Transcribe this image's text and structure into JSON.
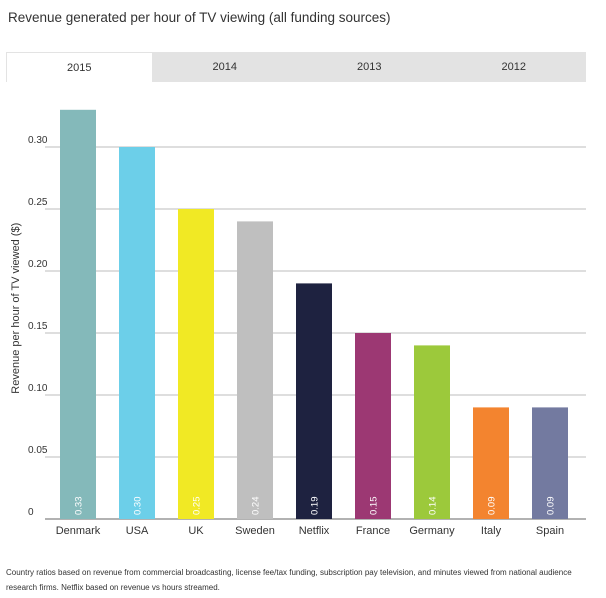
{
  "title": "Revenue generated per hour of TV viewing (all funding sources)",
  "tabs": [
    {
      "label": "2015",
      "active": true
    },
    {
      "label": "2014",
      "active": false
    },
    {
      "label": "2013",
      "active": false
    },
    {
      "label": "2012",
      "active": false
    }
  ],
  "footnote": "Country ratios based on revenue from commercial broadcasting, license fee/tax funding, subscription pay television, and minutes viewed from national audience research firms. Netflix based on revenue vs hours streamed.",
  "chart_data": {
    "type": "bar",
    "ylabel": "Revenue per hour of TV viewed ($)",
    "xlabel": "",
    "ylim": [
      0,
      0.35
    ],
    "yticks": [
      {
        "value": 0,
        "label": "0"
      },
      {
        "value": 0.05,
        "label": "0.05"
      },
      {
        "value": 0.1,
        "label": "0.10"
      },
      {
        "value": 0.15,
        "label": "0.15"
      },
      {
        "value": 0.2,
        "label": "0.20"
      },
      {
        "value": 0.25,
        "label": "0.25"
      },
      {
        "value": 0.3,
        "label": "0.30"
      }
    ],
    "grid": true,
    "categories": [
      "Denmark",
      "USA",
      "UK",
      "Sweden",
      "Netflix",
      "France",
      "Germany",
      "Italy",
      "Spain"
    ],
    "values": [
      0.33,
      0.3,
      0.25,
      0.24,
      0.19,
      0.15,
      0.14,
      0.09,
      0.09
    ],
    "data_labels": [
      "0.33",
      "0.30",
      "0.25",
      "0.24",
      "0.19",
      "0.15",
      "0.14",
      "0.09",
      "0.09"
    ],
    "colors": [
      "#84b9ba",
      "#6ccfe9",
      "#f1e924",
      "#bfbfbf",
      "#1e2240",
      "#9c3873",
      "#9cc93b",
      "#f3842f",
      "#737aa0"
    ]
  }
}
